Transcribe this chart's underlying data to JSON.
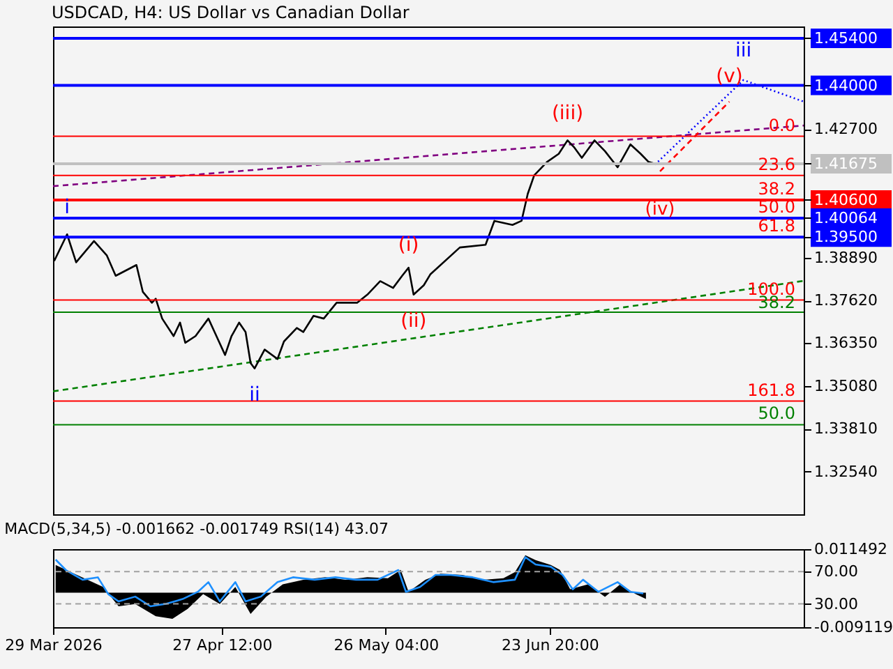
{
  "chart_data": [
    {
      "type": "line",
      "title": "USDCAD, H4:  US Dollar vs Canadian Dollar",
      "tick_labels": "y",
      "xlim": [
        "2026-03-29T00:00",
        "2026-08-07T06:00"
      ],
      "ylim": [
        1.3127,
        1.4575
      ],
      "yticks": [
        {
          "value": 1.454,
          "label": "1.45400"
        },
        {
          "value": 1.44,
          "label": "1.44000"
        },
        {
          "value": 1.427,
          "label": "1.42700"
        },
        {
          "value": 1.41675,
          "label": "1.41675"
        },
        {
          "value": 1.406,
          "label": "1.40600"
        },
        {
          "value": 1.40064,
          "label": "1.40064"
        },
        {
          "value": 1.395,
          "label": "1.39500"
        },
        {
          "value": 1.3889,
          "label": "1.38890"
        },
        {
          "value": 1.3762,
          "label": "1.37620"
        },
        {
          "value": 1.3635,
          "label": "1.36350"
        },
        {
          "value": 1.3508,
          "label": "1.35080"
        },
        {
          "value": 1.3381,
          "label": "1.33810"
        },
        {
          "value": 1.3254,
          "label": "1.32540"
        }
      ],
      "series": [
        {
          "color": "#008000",
          "line_style": "dashed",
          "x": [
            "2026-03-29T00:00",
            "2026-08-07T06:00"
          ],
          "values": [
            1.3492,
            1.382
          ]
        },
        {
          "color": "#800080",
          "line_style": "dashed",
          "x": [
            "2026-03-29T00:00",
            "2026-08-07T06:00"
          ],
          "values": [
            1.4101,
            1.4281
          ]
        },
        {
          "color": "#0000ff",
          "line_style": "dotted",
          "x": [
            "2026-07-12T06:00",
            "2026-07-27T17:00",
            "2026-08-07T06:00"
          ],
          "values": [
            1.4165,
            1.4416,
            1.4352
          ]
        },
        {
          "color": "#ff0000",
          "line_style": "dashed",
          "x": [
            "2026-07-13T03:00",
            "2026-07-25T06:00"
          ],
          "values": [
            1.4145,
            1.4352
          ]
        },
        {
          "color": "#000000",
          "line_style": "solid",
          "x": [
            "2026-03-29T05:00",
            "2026-03-31T11:00",
            "2026-04-02T01:00",
            "2026-04-05T04:00",
            "2026-04-07T10:00",
            "2026-04-08T23:00",
            "2026-04-12T14:00",
            "2026-04-13T17:00",
            "2026-04-15T07:00",
            "2026-04-15T23:00",
            "2026-04-17T02:00",
            "2026-04-19T02:00",
            "2026-04-20T05:00",
            "2026-04-21T03:00",
            "2026-04-22T22:00",
            "2026-04-25T04:00",
            "2026-04-26T06:00",
            "2026-04-28T02:00",
            "2026-04-29T05:00",
            "2026-04-30T13:00",
            "2026-05-01T16:00",
            "2026-05-02T13:00",
            "2026-05-03T06:00",
            "2026-05-05T00:00",
            "2026-05-07T06:00",
            "2026-05-08T09:00",
            "2026-05-10T15:00",
            "2026-05-11T18:00",
            "2026-05-13T13:00",
            "2026-05-15T08:00",
            "2026-05-17T14:00",
            "2026-05-21T04:00",
            "2026-05-22T23:00",
            "2026-05-25T05:00",
            "2026-05-27T11:00",
            "2026-05-29T01:00",
            "2026-05-30T04:00",
            "2026-05-31T01:00",
            "2026-06-01T20:00",
            "2026-06-02T23:00",
            "2026-06-08T03:00",
            "2026-06-12T15:00",
            "2026-06-14T04:00",
            "2026-06-17T08:00",
            "2026-06-18T22:00",
            "2026-06-20T00:00",
            "2026-06-21T03:00",
            "2026-06-23T09:00",
            "2026-06-25T10:00",
            "2026-06-26T23:00",
            "2026-06-28T02:00",
            "2026-06-29T11:00",
            "2026-07-01T16:00",
            "2026-07-03T12:00",
            "2026-07-05T17:00",
            "2026-07-07T23:00",
            "2026-07-09T18:00",
            "2026-07-11T03:00",
            "2026-07-12T06:00"
          ],
          "values": [
            1.3879,
            1.3958,
            1.3875,
            1.3938,
            1.3895,
            1.3835,
            1.3867,
            1.3787,
            1.3755,
            1.3767,
            1.3708,
            1.3656,
            1.3696,
            1.3636,
            1.3656,
            1.3708,
            1.3668,
            1.36,
            1.3656,
            1.3696,
            1.3668,
            1.3576,
            1.356,
            1.3616,
            1.3588,
            1.364,
            1.368,
            1.3668,
            1.3716,
            1.3708,
            1.3755,
            1.3755,
            1.3779,
            1.3819,
            1.3799,
            1.3835,
            1.3859,
            1.3779,
            1.3807,
            1.3839,
            1.3919,
            1.3927,
            1.3998,
            1.3986,
            1.3998,
            1.4078,
            1.4133,
            1.4173,
            1.4197,
            1.4237,
            1.4217,
            1.4185,
            1.4237,
            1.4205,
            1.4157,
            1.4225,
            1.4197,
            1.4173,
            1.41675
          ]
        }
      ],
      "ref_lines": [
        {
          "axis": "y",
          "value": 1.454,
          "color": "#0000ff"
        },
        {
          "axis": "y",
          "value": 1.44,
          "color": "#0000ff"
        },
        {
          "axis": "y",
          "value": 1.41675,
          "color": "#c0c0c0"
        },
        {
          "axis": "y",
          "value": 1.406,
          "color": "#ff0000"
        },
        {
          "axis": "y",
          "value": 1.40064,
          "color": "#0000ff"
        },
        {
          "axis": "y",
          "value": 1.395,
          "color": "#0000ff"
        },
        {
          "axis": "y",
          "value": 1.4249,
          "color": "#ff0000",
          "line_style": "solid"
        },
        {
          "axis": "y",
          "value": 1.4133,
          "color": "#ff0000",
          "line_style": "solid"
        },
        {
          "axis": "y",
          "value": 1.3763,
          "color": "#ff0000",
          "line_style": "solid"
        },
        {
          "axis": "y",
          "value": 1.3463,
          "color": "#ff0000",
          "line_style": "solid"
        },
        {
          "axis": "y",
          "value": 1.3727,
          "color": "#008000",
          "line_style": "solid"
        },
        {
          "axis": "y",
          "value": 1.3393,
          "color": "#008000",
          "line_style": "solid"
        }
      ],
      "annotations": [
        {
          "text": "i",
          "x": "2026-03-31T11:00",
          "y": 1.3958
        },
        {
          "text": "ii",
          "x": "2026-05-03T06:00",
          "y": 1.356
        },
        {
          "text": "(i)",
          "x": "2026-05-30T04:00",
          "y": 1.3859
        },
        {
          "text": "(ii)",
          "x": "2026-05-31T01:00",
          "y": 1.3779
        },
        {
          "text": "(iii)",
          "x": "2026-06-26T23:00",
          "y": 1.4237
        },
        {
          "text": "(iv)",
          "x": "2026-07-13T03:00",
          "y": 1.4145
        },
        {
          "text": "(v)",
          "x": "2026-07-25T06:00",
          "y": 1.4352
        },
        {
          "text": "iii",
          "x": "2026-07-27T17:00",
          "y": 1.4416
        },
        {
          "text": "0.0",
          "x": "2026-08-07T06:00",
          "y": 1.4249
        },
        {
          "text": "23.6",
          "x": "2026-08-07T06:00",
          "y": 1.4133
        },
        {
          "text": "38.2",
          "x": "2026-08-07T06:00",
          "y": 1.406
        },
        {
          "text": "50.0",
          "x": "2026-08-07T06:00",
          "y": 1.40064
        },
        {
          "text": "61.8",
          "x": "2026-08-07T06:00",
          "y": 1.395
        },
        {
          "text": "100.0",
          "x": "2026-08-07T06:00",
          "y": 1.3763
        },
        {
          "text": "161.8",
          "x": "2026-08-07T06:00",
          "y": 1.3463
        },
        {
          "text": "38.2",
          "x": "2026-08-07T06:00",
          "y": 1.3727
        },
        {
          "text": "50.0",
          "x": "2026-08-07T06:00",
          "y": 1.3393
        }
      ]
    },
    {
      "type": "area",
      "title": "MACD(5,34,5) -0.001662 -0.001749 RSI(14) 43.07",
      "xlim": [
        "2026-03-29T00:00",
        "2026-08-07T06:00"
      ],
      "xticks": [
        {
          "value": "2026-03-29T00:00",
          "label": "29 Mar 2026"
        },
        {
          "value": "2026-04-27T12:00",
          "label": "27 Apr 12:00"
        },
        {
          "value": "2026-05-26T04:00",
          "label": "26 May 04:00"
        },
        {
          "value": "2026-06-23T20:00",
          "label": "23 Jun 20:00"
        }
      ],
      "ylim": [
        -0.009119,
        0.011492
      ],
      "yticks": [
        -0.009119,
        0.011492
      ],
      "y2lim": [
        1,
        98
      ],
      "y2ticks": [
        {
          "value": 70,
          "label": "70.00"
        },
        {
          "value": 30,
          "label": "30.00"
        }
      ],
      "series": [
        {
          "color": "#000000",
          "x": [
            "2026-03-29T11:00",
            "2026-04-01T03:00",
            "2026-04-04T01:00",
            "2026-04-06T18:00",
            "2026-04-09T11:00",
            "2026-04-12T09:00",
            "2026-04-15T23:00",
            "2026-04-18T21:00",
            "2026-04-21T13:00",
            "2026-04-24T06:00",
            "2026-04-27T04:00",
            "2026-04-29T21:00",
            "2026-05-02T13:00",
            "2026-05-05T06:00",
            "2026-05-08T04:00",
            "2026-05-11T18:00",
            "2026-05-15T14:00",
            "2026-05-19T04:00",
            "2026-05-22T23:00",
            "2026-05-26T13:00",
            "2026-05-28T19:00",
            "2026-05-30T04:00",
            "2026-06-02T02:00",
            "2026-06-04T18:00",
            "2026-06-08T14:00",
            "2026-06-12T04:00",
            "2026-06-15T18:00",
            "2026-06-17T18:00",
            "2026-06-19T14:00",
            "2026-06-21T09:00",
            "2026-06-24T01:00",
            "2026-06-25T15:00",
            "2026-06-27T10:00",
            "2026-06-30T13:00",
            "2026-07-03T12:00",
            "2026-07-06T04:00",
            "2026-07-08T21:00",
            "2026-07-10T16:00"
          ],
          "values": [
            0.0073,
            0.0054,
            0.0034,
            0.0015,
            -0.0036,
            -0.003,
            -0.0062,
            -0.0069,
            -0.0043,
            -0.0004,
            -0.003,
            0.0015,
            -0.0056,
            -0.0011,
            0.0022,
            0.0034,
            0.0041,
            0.0034,
            0.0041,
            0.0038,
            0.006,
            0.0002,
            0.0034,
            0.005,
            0.0047,
            0.0034,
            0.0038,
            0.0054,
            0.0099,
            0.0086,
            0.0073,
            0.006,
            0.0009,
            0.0022,
            -0.0011,
            0.0022,
            -0.0004,
            -0.001662
          ]
        },
        {
          "type": "line",
          "axis": "y2",
          "color": "#1e90ff",
          "x": [
            "2026-03-29T11:00",
            "2026-03-31T06:00",
            "2026-04-03T04:00",
            "2026-04-05T20:00",
            "2026-04-07T16:00",
            "2026-04-09T11:00",
            "2026-04-12T09:00",
            "2026-04-15T01:00",
            "2026-04-17T18:00",
            "2026-04-20T16:00",
            "2026-04-23T08:00",
            "2026-04-25T04:00",
            "2026-04-27T04:00",
            "2026-04-29T21:00",
            "2026-05-01T16:00",
            "2026-05-04T08:00",
            "2026-05-07T06:00",
            "2026-05-09T23:00",
            "2026-05-13T18:00",
            "2026-05-17T09:00",
            "2026-05-20T23:00",
            "2026-05-24T18:00",
            "2026-05-28T09:00",
            "2026-05-29T17:00",
            "2026-06-01T04:00",
            "2026-06-03T21:00",
            "2026-06-06T13:00",
            "2026-06-10T09:00",
            "2026-06-13T23:00",
            "2026-06-17T18:00",
            "2026-06-19T14:00",
            "2026-06-21T09:00",
            "2026-06-24T01:00",
            "2026-06-26T02:00",
            "2026-06-27T21:00",
            "2026-06-29T16:00",
            "2026-07-02T09:00",
            "2026-07-05T17:00",
            "2026-07-07T23:00",
            "2026-07-10T05:00"
          ],
          "values": [
            85,
            72,
            60,
            63,
            42,
            33,
            39,
            27,
            30,
            36,
            45,
            57,
            33,
            57,
            33,
            39,
            57,
            63,
            60,
            63,
            60,
            60,
            72,
            45,
            51,
            66,
            66,
            63,
            57,
            60,
            88,
            79,
            76,
            66,
            48,
            60,
            45,
            57,
            45,
            43.07
          ]
        }
      ],
      "ref_lines": [
        {
          "axis": "y2",
          "value": 70,
          "color": "#a0a0a0",
          "line_style": "dashed"
        },
        {
          "axis": "y2",
          "value": 30,
          "color": "#a0a0a0",
          "line_style": "dashed"
        }
      ]
    }
  ]
}
